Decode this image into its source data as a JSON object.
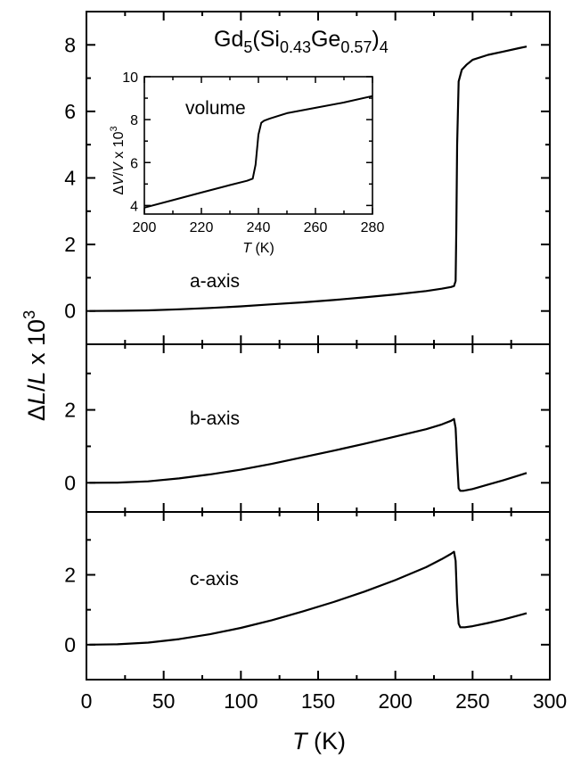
{
  "figure": {
    "compound": {
      "base": "Gd",
      "sub1": "5",
      "open": "(Si",
      "sub2": "0.43",
      "mid": "Ge",
      "sub3": "0.57",
      "close": ")",
      "sub4": "4"
    },
    "ylabel": {
      "delta": "Δ",
      "L1": "L",
      "slash": "/",
      "L2": "L",
      "times": " x 10",
      "exp": "3"
    },
    "xlabel": {
      "T": "T",
      "unit": " (K)"
    },
    "inset": {
      "ylabel": {
        "delta": "Δ",
        "V1": "V",
        "slash": "/",
        "V2": "V",
        "times": " x 10",
        "exp": "3"
      },
      "xlabel": {
        "T": "T",
        "unit": " (K)"
      }
    }
  },
  "chart_data": [
    {
      "panel": "a-axis",
      "type": "line",
      "label": "a-axis",
      "xlim": [
        0,
        300
      ],
      "ylim": [
        -1,
        9
      ],
      "yticks": [
        0,
        2,
        4,
        6,
        8
      ],
      "xticks": [
        0,
        50,
        100,
        150,
        200,
        250,
        300
      ],
      "x": [
        2,
        20,
        40,
        60,
        80,
        100,
        120,
        140,
        160,
        180,
        200,
        220,
        230,
        236,
        238,
        239,
        239.5,
        240,
        241,
        243,
        246,
        250,
        260,
        270,
        280,
        285
      ],
      "y": [
        0,
        0.005,
        0.02,
        0.05,
        0.09,
        0.14,
        0.2,
        0.26,
        0.33,
        0.41,
        0.5,
        0.6,
        0.67,
        0.72,
        0.75,
        0.9,
        2.5,
        5.0,
        6.9,
        7.25,
        7.4,
        7.55,
        7.7,
        7.8,
        7.9,
        7.95
      ]
    },
    {
      "panel": "b-axis",
      "type": "line",
      "label": "b-axis",
      "xlim": [
        0,
        300
      ],
      "ylim": [
        -0.8,
        3.8
      ],
      "yticks": [
        0,
        2
      ],
      "xticks": [
        0,
        50,
        100,
        150,
        200,
        250,
        300
      ],
      "x": [
        2,
        20,
        40,
        60,
        80,
        100,
        120,
        140,
        160,
        180,
        200,
        220,
        230,
        236,
        238,
        239,
        240,
        241,
        242,
        244,
        250,
        260,
        270,
        280,
        285
      ],
      "y": [
        0,
        0.005,
        0.04,
        0.12,
        0.23,
        0.36,
        0.52,
        0.7,
        0.88,
        1.07,
        1.27,
        1.47,
        1.6,
        1.7,
        1.75,
        1.5,
        0.6,
        -0.15,
        -0.22,
        -0.22,
        -0.17,
        -0.05,
        0.07,
        0.2,
        0.27
      ]
    },
    {
      "panel": "c-axis",
      "type": "line",
      "label": "c-axis",
      "xlim": [
        0,
        300
      ],
      "ylim": [
        -1,
        3.8
      ],
      "yticks": [
        0,
        2
      ],
      "xticks": [
        0,
        50,
        100,
        150,
        200,
        250,
        300
      ],
      "xtick_labels": [
        "0",
        "50",
        "100",
        "150",
        "200",
        "250",
        "300"
      ],
      "x": [
        2,
        20,
        40,
        60,
        80,
        100,
        120,
        140,
        160,
        180,
        200,
        220,
        230,
        236,
        238,
        239,
        240,
        241,
        242,
        245,
        250,
        260,
        270,
        280,
        285
      ],
      "y": [
        0,
        0.01,
        0.06,
        0.16,
        0.3,
        0.48,
        0.7,
        0.95,
        1.22,
        1.52,
        1.85,
        2.22,
        2.45,
        2.6,
        2.66,
        2.4,
        1.2,
        0.6,
        0.5,
        0.5,
        0.53,
        0.62,
        0.72,
        0.84,
        0.9
      ]
    },
    {
      "panel": "inset",
      "type": "line",
      "label": "volume",
      "xlim": [
        200,
        280
      ],
      "ylim": [
        3.6,
        10
      ],
      "yticks": [
        4,
        6,
        8,
        10
      ],
      "xticks": [
        200,
        220,
        240,
        260,
        280
      ],
      "x": [
        200,
        210,
        220,
        230,
        236,
        238,
        239,
        240,
        241,
        242,
        244,
        250,
        260,
        270,
        280
      ],
      "y": [
        3.9,
        4.25,
        4.6,
        4.95,
        5.15,
        5.25,
        5.9,
        7.3,
        7.85,
        7.95,
        8.05,
        8.3,
        8.55,
        8.8,
        9.1
      ]
    }
  ]
}
